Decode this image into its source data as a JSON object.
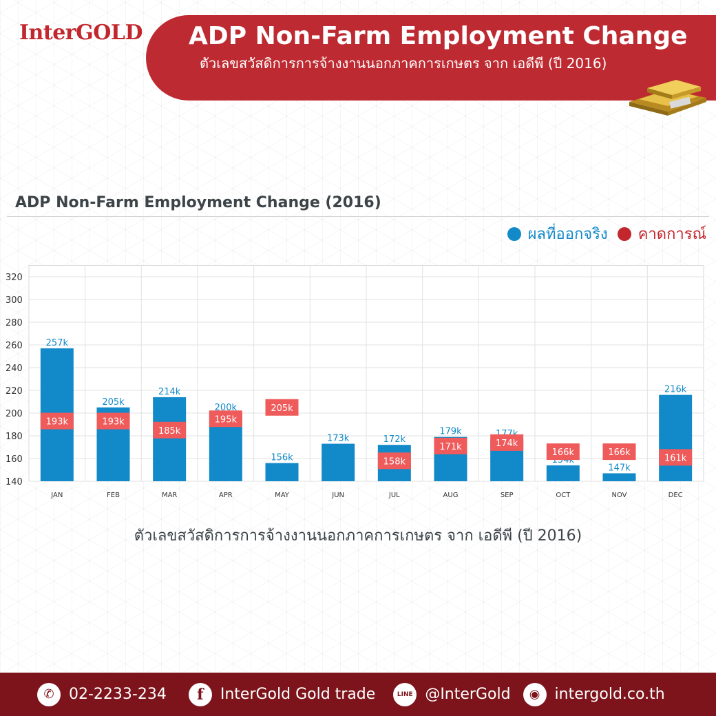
{
  "brand": "InterGOLD",
  "header": {
    "title": "ADP Non-Farm Employment Change",
    "subtitle": "ตัวเลขสวัสดิการการจ้างงานนอกภาคการเกษตร จาก เอดีพี (ปี 2016)"
  },
  "legend": {
    "actual_label": "ผลที่ออกจริง",
    "forecast_label": "คาดการณ์"
  },
  "footnote": "ตัวเลขสวัสดิการการจ้างงานนอกภาคการเกษตร จาก เอดีพี (ปี 2016)",
  "footer": {
    "phone": "02-2233-234",
    "facebook": "InterGold Gold trade",
    "line": "@InterGold",
    "line_icon_text": "LINE",
    "website": "intergold.co.th"
  },
  "colors": {
    "actual": "#1289c8",
    "forecast": "#ef5a5a",
    "brand_red": "#be2a31",
    "footer_bg": "#7d141b"
  },
  "chart_data": {
    "type": "bar",
    "title": "ADP Non-Farm Employment Change (2016)",
    "categories": [
      "JAN",
      "FEB",
      "MAR",
      "APR",
      "MAY",
      "JUN",
      "JUL",
      "AUG",
      "SEP",
      "OCT",
      "NOV",
      "DEC"
    ],
    "series": [
      {
        "name": "ผลที่ออกจริง",
        "values": [
          257,
          205,
          214,
          200,
          156,
          173,
          172,
          179,
          177,
          154,
          147,
          216
        ],
        "labels": [
          "257k",
          "205k",
          "214k",
          "200k",
          "156k",
          "173k",
          "172k",
          "179k",
          "177k",
          "154k",
          "147k",
          "216k"
        ]
      },
      {
        "name": "คาดการณ์",
        "values": [
          193,
          193,
          185,
          195,
          205,
          null,
          158,
          171,
          174,
          166,
          166,
          161
        ],
        "labels": [
          "193k",
          "193k",
          "185k",
          "195k",
          "205k",
          "",
          "158k",
          "171k",
          "174k",
          "166k",
          "166k",
          "161k"
        ]
      }
    ],
    "yticks": [
      140,
      160,
      180,
      200,
      220,
      240,
      260,
      280,
      300,
      320
    ],
    "ylim": [
      140,
      330
    ],
    "grid": true,
    "legend_position": "top-right"
  }
}
